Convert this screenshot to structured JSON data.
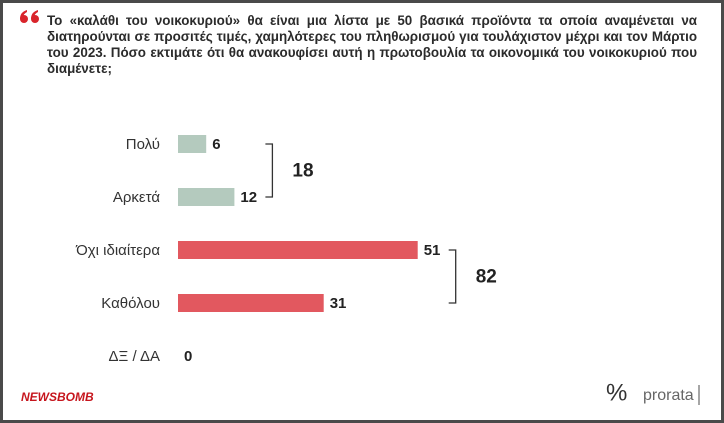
{
  "chart_data": {
    "type": "bar",
    "title": "Το «καλάθι του νοικοκυριού» θα είναι μια λίστα με 50 βασικά προϊόντα τα οποία αναμένεται να διατηρούνται σε προσιτές τιμές, χαμηλότερες του πληθωρισμού για τουλάχιστον μέχρι και τον Μάρτιο του 2023. Πόσο εκτιμάτε ότι θα ανακουφίσει αυτή η πρωτοβουλία τα οικονομικά του νοικοκυριού που διαμένετε;",
    "categories": [
      "Πολύ",
      "Αρκετά",
      "Όχι ιδιαίτερα",
      "Καθόλου",
      "ΔΞ / ΔΑ"
    ],
    "values": [
      6,
      12,
      51,
      31,
      0
    ],
    "colors": [
      "#b4cabe",
      "#b4cabe",
      "#e2585f",
      "#e2585f",
      "#e2585f"
    ],
    "groups": [
      {
        "value": 18,
        "members": [
          "Πολύ",
          "Αρκετά"
        ]
      },
      {
        "value": 82,
        "members": [
          "Όχι ιδιαίτερα",
          "Καθόλου"
        ]
      }
    ],
    "source_left": "NEWSBOMB",
    "source_right_mark": "%",
    "source_right": "prorata"
  }
}
